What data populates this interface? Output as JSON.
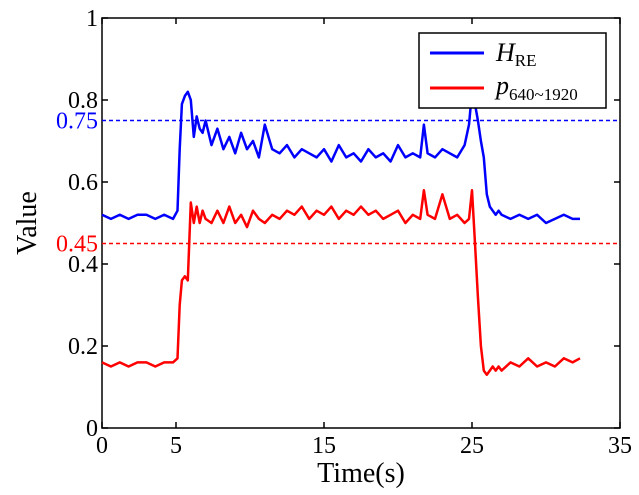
{
  "chart_data": {
    "type": "line",
    "title": "",
    "xlabel": "Time(s)",
    "ylabel": "Value",
    "xlim": [
      0,
      35
    ],
    "ylim": [
      0,
      1
    ],
    "x_ticks": [
      0,
      5,
      15,
      25,
      35
    ],
    "x_tick_labels": [
      "0",
      "5",
      "15",
      "25",
      "35"
    ],
    "y_ticks": [
      0,
      0.2,
      0.4,
      0.6,
      0.8,
      1
    ],
    "y_tick_labels": [
      "0",
      "0.2",
      "0.4",
      "0.6",
      "0.8",
      "1"
    ],
    "grid": false,
    "legend_position": "top-right",
    "series": [
      {
        "name": "H_RE",
        "legend_main": "H",
        "legend_sub": "RE",
        "color": "#0000ff",
        "x": [
          0,
          0.6,
          1.2,
          1.8,
          2.4,
          3.0,
          3.6,
          4.2,
          4.8,
          5.1,
          5.25,
          5.4,
          5.6,
          5.8,
          6.0,
          6.2,
          6.4,
          6.6,
          6.8,
          7.0,
          7.4,
          7.8,
          8.2,
          8.6,
          9.0,
          9.4,
          9.8,
          10.2,
          10.6,
          11.0,
          11.5,
          12.0,
          12.5,
          13.0,
          13.5,
          14.0,
          14.5,
          15.0,
          15.5,
          16.0,
          16.5,
          17.0,
          17.5,
          18.0,
          18.5,
          19.0,
          19.5,
          20.0,
          20.5,
          21.0,
          21.5,
          21.75,
          22.0,
          22.5,
          23.0,
          23.5,
          24.0,
          24.5,
          24.8,
          25.0,
          25.2,
          25.4,
          25.6,
          25.8,
          26.0,
          26.2,
          26.4,
          26.6,
          26.8,
          27.0,
          27.6,
          28.2,
          28.8,
          29.4,
          30.0,
          30.6,
          31.2,
          31.8,
          32.3
        ],
        "y": [
          0.52,
          0.51,
          0.52,
          0.51,
          0.52,
          0.52,
          0.51,
          0.52,
          0.51,
          0.53,
          0.68,
          0.79,
          0.81,
          0.82,
          0.8,
          0.71,
          0.76,
          0.73,
          0.72,
          0.75,
          0.69,
          0.73,
          0.68,
          0.71,
          0.67,
          0.72,
          0.68,
          0.7,
          0.66,
          0.74,
          0.68,
          0.67,
          0.69,
          0.66,
          0.68,
          0.67,
          0.66,
          0.68,
          0.65,
          0.69,
          0.66,
          0.67,
          0.65,
          0.68,
          0.66,
          0.67,
          0.65,
          0.69,
          0.66,
          0.67,
          0.66,
          0.74,
          0.67,
          0.66,
          0.68,
          0.67,
          0.66,
          0.69,
          0.74,
          0.82,
          0.79,
          0.75,
          0.7,
          0.66,
          0.57,
          0.54,
          0.53,
          0.52,
          0.53,
          0.52,
          0.51,
          0.52,
          0.51,
          0.52,
          0.5,
          0.51,
          0.52,
          0.51,
          0.51
        ]
      },
      {
        "name": "p_640~1920",
        "legend_main": "p",
        "legend_sub": "640~1920",
        "color": "#ff0000",
        "x": [
          0,
          0.6,
          1.2,
          1.8,
          2.4,
          3.0,
          3.6,
          4.2,
          4.8,
          5.1,
          5.25,
          5.4,
          5.6,
          5.8,
          6.0,
          6.2,
          6.4,
          6.6,
          6.8,
          7.0,
          7.4,
          7.8,
          8.2,
          8.6,
          9.0,
          9.4,
          9.8,
          10.2,
          10.6,
          11.0,
          11.5,
          12.0,
          12.5,
          13.0,
          13.5,
          14.0,
          14.5,
          15.0,
          15.5,
          16.0,
          16.5,
          17.0,
          17.5,
          18.0,
          18.5,
          19.0,
          19.5,
          20.0,
          20.5,
          21.0,
          21.5,
          21.75,
          22.0,
          22.5,
          23.0,
          23.5,
          24.0,
          24.5,
          24.8,
          25.0,
          25.2,
          25.4,
          25.6,
          25.8,
          26.0,
          26.2,
          26.4,
          26.6,
          26.8,
          27.0,
          27.6,
          28.2,
          28.8,
          29.4,
          30.0,
          30.6,
          31.2,
          31.8,
          32.3
        ],
        "y": [
          0.16,
          0.15,
          0.16,
          0.15,
          0.16,
          0.16,
          0.15,
          0.16,
          0.16,
          0.17,
          0.3,
          0.36,
          0.37,
          0.36,
          0.55,
          0.5,
          0.54,
          0.5,
          0.53,
          0.51,
          0.5,
          0.53,
          0.5,
          0.54,
          0.5,
          0.52,
          0.49,
          0.53,
          0.51,
          0.5,
          0.52,
          0.51,
          0.53,
          0.52,
          0.54,
          0.51,
          0.53,
          0.52,
          0.54,
          0.51,
          0.53,
          0.52,
          0.54,
          0.52,
          0.53,
          0.51,
          0.52,
          0.53,
          0.5,
          0.52,
          0.51,
          0.58,
          0.52,
          0.51,
          0.57,
          0.51,
          0.52,
          0.5,
          0.51,
          0.58,
          0.45,
          0.32,
          0.2,
          0.14,
          0.13,
          0.14,
          0.15,
          0.14,
          0.15,
          0.14,
          0.16,
          0.15,
          0.17,
          0.15,
          0.16,
          0.15,
          0.17,
          0.16,
          0.17
        ]
      }
    ],
    "reference_lines": [
      {
        "y": 0.75,
        "label": "0.75",
        "color": "#0000ff",
        "style": "dashed"
      },
      {
        "y": 0.45,
        "label": "0.45",
        "color": "#ff0000",
        "style": "dashed"
      }
    ]
  }
}
